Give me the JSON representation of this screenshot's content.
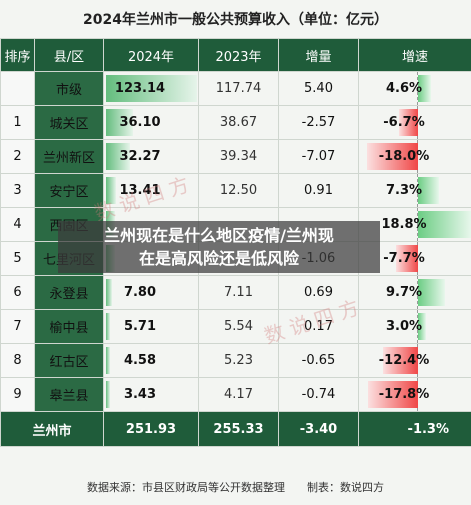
{
  "title": "2024年兰州市一般公共预算收入（单位：亿元）",
  "headers": [
    "排序",
    "县/区",
    "2024年",
    "2023年",
    "增量",
    "增速"
  ],
  "rows": [
    {
      "rank": "",
      "name": "市级",
      "y2024": "123.14",
      "y2023": "117.74",
      "inc": "5.40",
      "growth": "4.6%"
    },
    {
      "rank": "1",
      "name": "城关区",
      "y2024": "36.10",
      "y2023": "38.67",
      "inc": "-2.57",
      "growth": "-6.7%"
    },
    {
      "rank": "2",
      "name": "兰州新区",
      "y2024": "32.27",
      "y2023": "39.34",
      "inc": "-7.07",
      "growth": "-18.0%"
    },
    {
      "rank": "3",
      "name": "安宁区",
      "y2024": "13.41",
      "y2023": "12.50",
      "inc": "0.91",
      "growth": "7.3%"
    },
    {
      "rank": "4",
      "name": "西固区",
      "y2024": "",
      "y2023": "",
      "inc": "",
      "growth": "18.8%"
    },
    {
      "rank": "5",
      "name": "七里河区",
      "y2024": "",
      "y2023": "",
      "inc": "-1.06",
      "growth": "-7.7%"
    },
    {
      "rank": "6",
      "name": "永登县",
      "y2024": "7.80",
      "y2023": "7.11",
      "inc": "0.69",
      "growth": "9.7%"
    },
    {
      "rank": "7",
      "name": "榆中县",
      "y2024": "5.71",
      "y2023": "5.54",
      "inc": "0.17",
      "growth": "3.0%"
    },
    {
      "rank": "8",
      "name": "红古区",
      "y2024": "4.58",
      "y2023": "5.23",
      "inc": "-0.65",
      "growth": "-12.4%"
    },
    {
      "rank": "9",
      "name": "皋兰县",
      "y2024": "3.43",
      "y2023": "4.17",
      "inc": "-0.74",
      "growth": "-17.8%"
    }
  ],
  "bar_values": [
    123.14,
    36.1,
    32.27,
    13.41,
    12.6,
    12.7,
    7.8,
    5.71,
    4.58,
    3.43
  ],
  "growth_values": [
    4.6,
    -6.7,
    -18.0,
    7.3,
    18.8,
    -7.7,
    9.7,
    3.0,
    -12.4,
    -17.8
  ],
  "total": {
    "name": "兰州市",
    "y2024": "251.93",
    "y2023": "255.33",
    "inc": "-3.40",
    "growth": "-1.3%"
  },
  "footer": {
    "source": "数据来源：市县区财政局等公开数据整理",
    "maker": "制表：数说四方"
  },
  "watermark": "数说四方",
  "overlay": {
    "line1": "兰州现在是什么地区疫情/兰州现",
    "line2": "在是高风险还是低风险"
  },
  "colors": {
    "header": "#1f5c3a",
    "name_cell": "#2b6a44",
    "positive": "#6ccd84",
    "negative": "#f04747"
  }
}
